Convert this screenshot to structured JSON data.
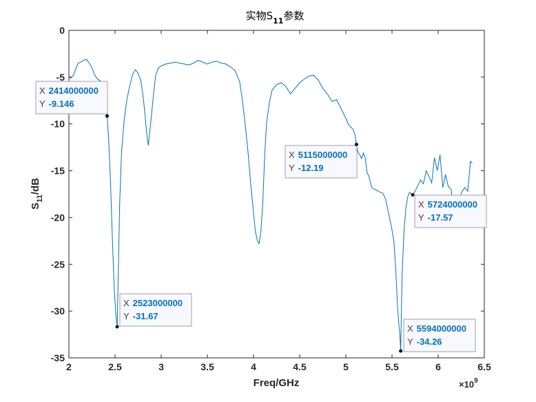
{
  "chart_data": {
    "type": "line",
    "title": {
      "prefix": "实物S",
      "subscript": "11",
      "suffix": "参数"
    },
    "xlabel": "Freq/GHz",
    "ylabel": {
      "prefix": "S",
      "subscript": "11",
      "suffix": "/dB"
    },
    "x_multiplier": {
      "base": "×10",
      "exponent": "9"
    },
    "xlim": [
      2,
      6.5
    ],
    "ylim": [
      -35,
      0
    ],
    "xticks": [
      "2",
      "2.5",
      "3",
      "3.5",
      "4",
      "4.5",
      "5",
      "5.5",
      "6",
      "6.5"
    ],
    "yticks": [
      "0",
      "-5",
      "-10",
      "-15",
      "-20",
      "-25",
      "-30",
      "-35"
    ],
    "grid": false,
    "series": [
      {
        "color": "#0072bd",
        "x": [
          2.0,
          2.02,
          2.05,
          2.08,
          2.1,
          2.13,
          2.16,
          2.19,
          2.22,
          2.25,
          2.28,
          2.31,
          2.34,
          2.37,
          2.4,
          2.414,
          2.43,
          2.45,
          2.47,
          2.49,
          2.51,
          2.523,
          2.535,
          2.55,
          2.57,
          2.6,
          2.63,
          2.66,
          2.69,
          2.72,
          2.75,
          2.78,
          2.8,
          2.82,
          2.84,
          2.86,
          2.88,
          2.9,
          2.92,
          2.94,
          2.97,
          3.0,
          3.05,
          3.1,
          3.15,
          3.2,
          3.25,
          3.3,
          3.35,
          3.4,
          3.45,
          3.5,
          3.55,
          3.6,
          3.65,
          3.7,
          3.75,
          3.8,
          3.85,
          3.88,
          3.91,
          3.94,
          3.97,
          4.0,
          4.02,
          4.04,
          4.06,
          4.08,
          4.1,
          4.12,
          4.14,
          4.17,
          4.2,
          4.25,
          4.3,
          4.35,
          4.4,
          4.45,
          4.5,
          4.55,
          4.6,
          4.65,
          4.7,
          4.75,
          4.8,
          4.85,
          4.9,
          4.95,
          5.0,
          5.03,
          5.06,
          5.08,
          5.1,
          5.115,
          5.13,
          5.15,
          5.17,
          5.19,
          5.21,
          5.23,
          5.25,
          5.28,
          5.31,
          5.34,
          5.37,
          5.4,
          5.43,
          5.46,
          5.49,
          5.52,
          5.54,
          5.56,
          5.575,
          5.585,
          5.594,
          5.6,
          5.61,
          5.63,
          5.65,
          5.67,
          5.69,
          5.71,
          5.724,
          5.75,
          5.78,
          5.81,
          5.84,
          5.87,
          5.9,
          5.93,
          5.96,
          5.99,
          6.02,
          6.05,
          6.08,
          6.11,
          6.14,
          6.17,
          6.2,
          6.23,
          6.26,
          6.29,
          6.32,
          6.35,
          6.37
        ],
        "y": [
          -5.0,
          -5.1,
          -4.8,
          -4.0,
          -3.5,
          -3.4,
          -3.2,
          -3.1,
          -3.5,
          -4.0,
          -4.8,
          -5.2,
          -5.4,
          -5.8,
          -7.5,
          -9.146,
          -11.5,
          -16.0,
          -22.0,
          -27.5,
          -30.5,
          -31.67,
          -26.0,
          -18.5,
          -13.0,
          -9.5,
          -7.3,
          -5.9,
          -4.7,
          -4.2,
          -4.6,
          -5.4,
          -6.8,
          -8.5,
          -10.8,
          -12.3,
          -10.5,
          -8.5,
          -6.5,
          -4.8,
          -4.0,
          -3.8,
          -3.6,
          -3.5,
          -3.4,
          -3.5,
          -3.6,
          -3.7,
          -3.5,
          -3.2,
          -3.4,
          -3.6,
          -3.4,
          -3.3,
          -3.5,
          -3.6,
          -3.9,
          -4.3,
          -5.5,
          -7.5,
          -10.0,
          -13.0,
          -16.5,
          -19.5,
          -21.5,
          -22.4,
          -22.8,
          -21.5,
          -18.5,
          -13.5,
          -10.0,
          -7.8,
          -6.4,
          -5.8,
          -5.6,
          -6.0,
          -6.8,
          -6.2,
          -5.6,
          -5.2,
          -4.9,
          -4.8,
          -5.3,
          -6.2,
          -6.8,
          -7.6,
          -7.4,
          -8.4,
          -9.4,
          -10.1,
          -10.4,
          -10.6,
          -11.2,
          -12.19,
          -13.0,
          -13.3,
          -13.7,
          -13.1,
          -13.6,
          -15.2,
          -15.6,
          -16.8,
          -17.0,
          -17.1,
          -17.3,
          -17.4,
          -18.0,
          -19.4,
          -20.8,
          -22.5,
          -25.5,
          -29.5,
          -31.5,
          -32.5,
          -34.26,
          -31.0,
          -26.0,
          -21.5,
          -19.0,
          -17.8,
          -17.3,
          -17.5,
          -17.57,
          -17.2,
          -16.6,
          -16.0,
          -16.4,
          -15.0,
          -15.6,
          -16.3,
          -13.6,
          -15.0,
          -13.3,
          -16.8,
          -15.4,
          -16.7,
          -17.0,
          -19.2,
          -19.5,
          -17.9,
          -17.2,
          -16.8,
          -17.2,
          -14.0,
          -14.2
        ]
      }
    ],
    "datatips": [
      {
        "x": 2.414,
        "y": -9.146,
        "x_text": "2414000000",
        "y_text": "-9.146",
        "x_key": "X",
        "y_key": "Y"
      },
      {
        "x": 2.523,
        "y": -31.67,
        "x_text": "2523000000",
        "y_text": "-31.67",
        "x_key": "X",
        "y_key": "Y"
      },
      {
        "x": 5.115,
        "y": -12.19,
        "x_text": "5115000000",
        "y_text": "-12.19",
        "x_key": "X",
        "y_key": "Y"
      },
      {
        "x": 5.724,
        "y": -17.57,
        "x_text": "5724000000",
        "y_text": "-17.57",
        "x_key": "X",
        "y_key": "Y"
      },
      {
        "x": 5.594,
        "y": -34.26,
        "x_text": "5594000000",
        "y_text": "-34.26",
        "x_key": "X",
        "y_key": "Y"
      }
    ]
  }
}
